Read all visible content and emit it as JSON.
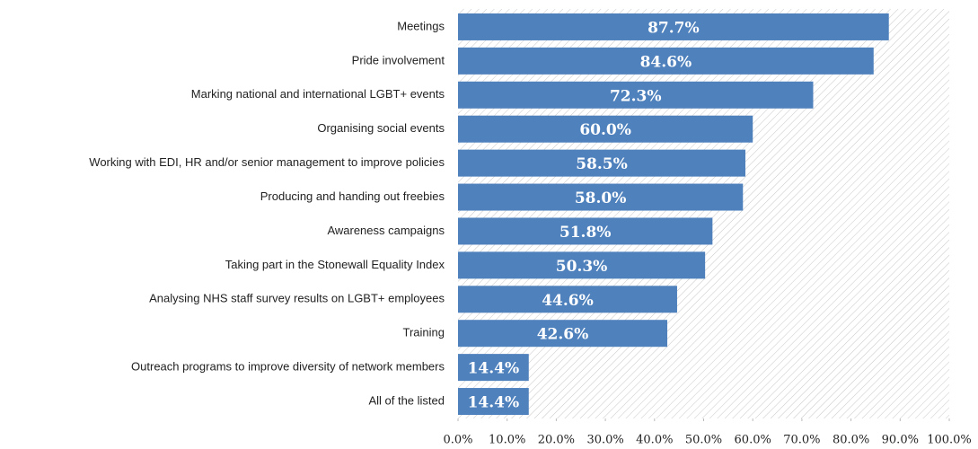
{
  "chart_data": {
    "type": "bar",
    "orientation": "horizontal",
    "categories": [
      "Meetings",
      "Pride involvement",
      "Marking national and international LGBT+ events",
      "Organising social events",
      "Working with EDI, HR and/or senior management to improve policies",
      "Producing and handing out freebies",
      "Awareness campaigns",
      "Taking part in the Stonewall Equality Index",
      "Analysing NHS staff survey results on LGBT+ employees",
      "Training",
      "Outreach programs to improve diversity of network members",
      "All of the listed"
    ],
    "values": [
      87.7,
      84.6,
      72.3,
      60.0,
      58.5,
      58.0,
      51.8,
      50.3,
      44.6,
      42.6,
      14.4,
      14.4
    ],
    "value_labels": [
      "87.7%",
      "84.6%",
      "72.3%",
      "60.0%",
      "58.5%",
      "58.0%",
      "51.8%",
      "50.3%",
      "44.6%",
      "42.6%",
      "14.4%",
      "14.4%"
    ],
    "color": "#4f81bd",
    "xlim": [
      0,
      100
    ],
    "xticks": [
      {
        "value": 0,
        "label": "0.0%"
      },
      {
        "value": 10,
        "label": "10.0%"
      },
      {
        "value": 20,
        "label": "20.0%"
      },
      {
        "value": 30,
        "label": "30.0%"
      },
      {
        "value": 40,
        "label": "40.0%"
      },
      {
        "value": 50,
        "label": "50.0%"
      },
      {
        "value": 60,
        "label": "60.0%"
      },
      {
        "value": 70,
        "label": "70.0%"
      },
      {
        "value": 80,
        "label": "80.0%"
      },
      {
        "value": 90,
        "label": "90.0%"
      },
      {
        "value": 100,
        "label": "100.0%"
      }
    ]
  }
}
